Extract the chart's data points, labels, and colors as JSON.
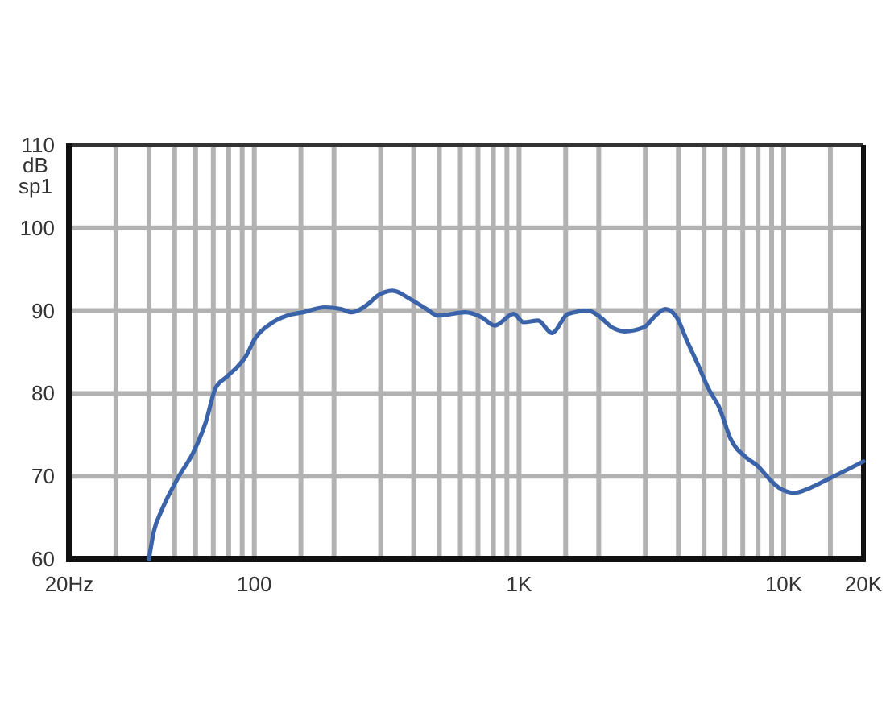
{
  "chart_data": {
    "type": "line",
    "ylabel": "dB sp1",
    "x": [
      40,
      41.7,
      44.7,
      51.5,
      59.3,
      65.5,
      71.3,
      78.6,
      86.8,
      93,
      100,
      115,
      133,
      153,
      184,
      212,
      233,
      269,
      292,
      333,
      388,
      447,
      494,
      626,
      722,
      810,
      954,
      1040,
      1180,
      1330,
      1530,
      1830,
      2030,
      2240,
      2500,
      2970,
      3230,
      3570,
      3940,
      4290,
      4740,
      5230,
      5690,
      6300,
      7260,
      8000,
      8740,
      9600,
      11000,
      12600,
      14600,
      16900,
      20000
    ],
    "series": [
      {
        "color": "#3b63a9",
        "values": [
          60,
          63.3,
          65.9,
          69.8,
          73.1,
          76.5,
          80.6,
          82,
          83.3,
          84.5,
          86.5,
          88.4,
          89.4,
          89.8,
          90.4,
          90.2,
          89.8,
          90.8,
          91.8,
          92.4,
          91.4,
          90.2,
          89.4,
          89.8,
          89.2,
          88.2,
          89.6,
          88.6,
          88.8,
          87.3,
          89.6,
          90,
          89.2,
          88,
          87.5,
          88,
          89.2,
          90.2,
          89.2,
          86.5,
          83.5,
          80.4,
          78.4,
          74.5,
          72.2,
          71.2,
          69.8,
          68.6,
          68,
          68.6,
          69.6,
          70.6,
          71.8
        ]
      }
    ],
    "log": "x",
    "xlim": [
      20,
      20000
    ],
    "xticks": [
      {
        "value": 20,
        "label": "20Hz"
      },
      {
        "value": 30,
        "label": null
      },
      {
        "value": 40,
        "label": null
      },
      {
        "value": 50,
        "label": null
      },
      {
        "value": 60,
        "label": null
      },
      {
        "value": 70,
        "label": null
      },
      {
        "value": 80,
        "label": null
      },
      {
        "value": 90,
        "label": null
      },
      {
        "value": 100,
        "label": "100"
      },
      {
        "value": 150,
        "label": null
      },
      {
        "value": 200,
        "label": null
      },
      {
        "value": 300,
        "label": null
      },
      {
        "value": 400,
        "label": null
      },
      {
        "value": 500,
        "label": null
      },
      {
        "value": 600,
        "label": null
      },
      {
        "value": 700,
        "label": null
      },
      {
        "value": 800,
        "label": null
      },
      {
        "value": 900,
        "label": null
      },
      {
        "value": 1000,
        "label": "1K"
      },
      {
        "value": 1500,
        "label": null
      },
      {
        "value": 2000,
        "label": null
      },
      {
        "value": 3000,
        "label": null
      },
      {
        "value": 4000,
        "label": null
      },
      {
        "value": 5000,
        "label": null
      },
      {
        "value": 6000,
        "label": null
      },
      {
        "value": 7000,
        "label": null
      },
      {
        "value": 8000,
        "label": null
      },
      {
        "value": 9000,
        "label": null
      },
      {
        "value": 10000,
        "label": "10K"
      },
      {
        "value": 15000,
        "label": null
      },
      {
        "value": 20000,
        "label": "20K"
      }
    ],
    "ylim": [
      60,
      110
    ],
    "yticks": [
      60,
      70,
      80,
      90,
      100,
      110
    ],
    "grid": true
  }
}
